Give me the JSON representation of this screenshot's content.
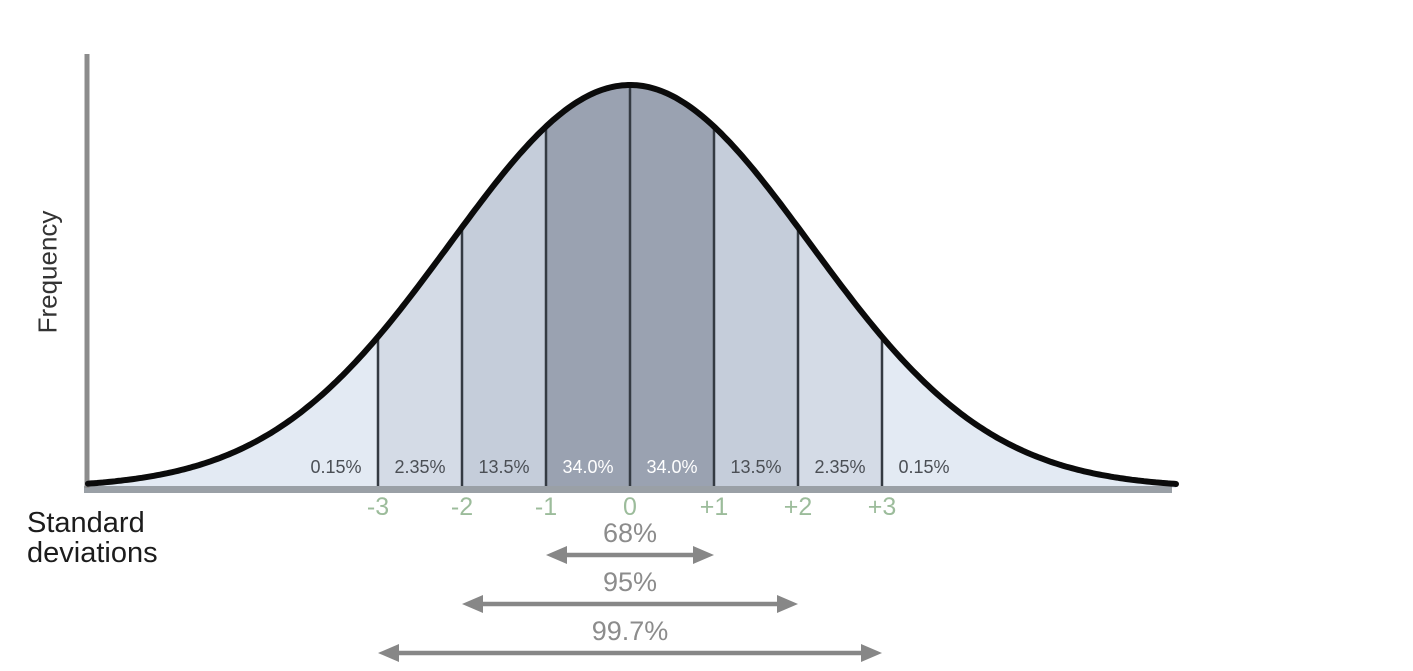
{
  "chart_data": {
    "type": "area",
    "curve": "gaussian-bell",
    "ylabel": "Frequency",
    "xlabel": "Standard\ndeviations",
    "x_axis": {
      "tick_values": [
        -3,
        -2,
        -1,
        0,
        1,
        2,
        3
      ],
      "tick_labels": [
        "-3",
        "-2",
        "-1",
        "0",
        "+1",
        "+2",
        "+3"
      ],
      "tick_color": "#9cbc9b"
    },
    "segments": [
      {
        "from_sd": null,
        "to_sd": -3,
        "label": "0.15%",
        "label_at_sd": -3.5,
        "fill": "#e3eaf3",
        "label_color": "#4b4f55"
      },
      {
        "from_sd": -3,
        "to_sd": -2,
        "label": "2.35%",
        "label_at_sd": -2.5,
        "fill": "#d4dbe6",
        "label_color": "#4b4f55"
      },
      {
        "from_sd": -2,
        "to_sd": -1,
        "label": "13.5%",
        "label_at_sd": -1.5,
        "fill": "#c5cdda",
        "label_color": "#4b4f55"
      },
      {
        "from_sd": -1,
        "to_sd": 0,
        "label": "34.0%",
        "label_at_sd": -0.5,
        "fill": "#9aa2b1",
        "label_color": "#ffffff"
      },
      {
        "from_sd": 0,
        "to_sd": 1,
        "label": "34.0%",
        "label_at_sd": 0.5,
        "fill": "#9aa2b1",
        "label_color": "#ffffff"
      },
      {
        "from_sd": 1,
        "to_sd": 2,
        "label": "13.5%",
        "label_at_sd": 1.5,
        "fill": "#c5cdda",
        "label_color": "#4b4f55"
      },
      {
        "from_sd": 2,
        "to_sd": 3,
        "label": "2.35%",
        "label_at_sd": 2.5,
        "fill": "#d4dbe6",
        "label_color": "#4b4f55"
      },
      {
        "from_sd": 3,
        "to_sd": null,
        "label": "0.15%",
        "label_at_sd": 3.5,
        "fill": "#e3eaf3",
        "label_color": "#4b4f55"
      }
    ],
    "ranges": [
      {
        "label": "68%",
        "from_sd": -1,
        "to_sd": 1
      },
      {
        "label": "95%",
        "from_sd": -2,
        "to_sd": 2
      },
      {
        "label": "99.7%",
        "from_sd": -3,
        "to_sd": 3
      }
    ],
    "colors": {
      "curve": "#0b0b0b",
      "y_axis": "#8c8c8c",
      "baseline": "#9aa0a6",
      "divider": "#343a42",
      "arrow": "#878787",
      "range_label": "#8c8c8c"
    }
  }
}
